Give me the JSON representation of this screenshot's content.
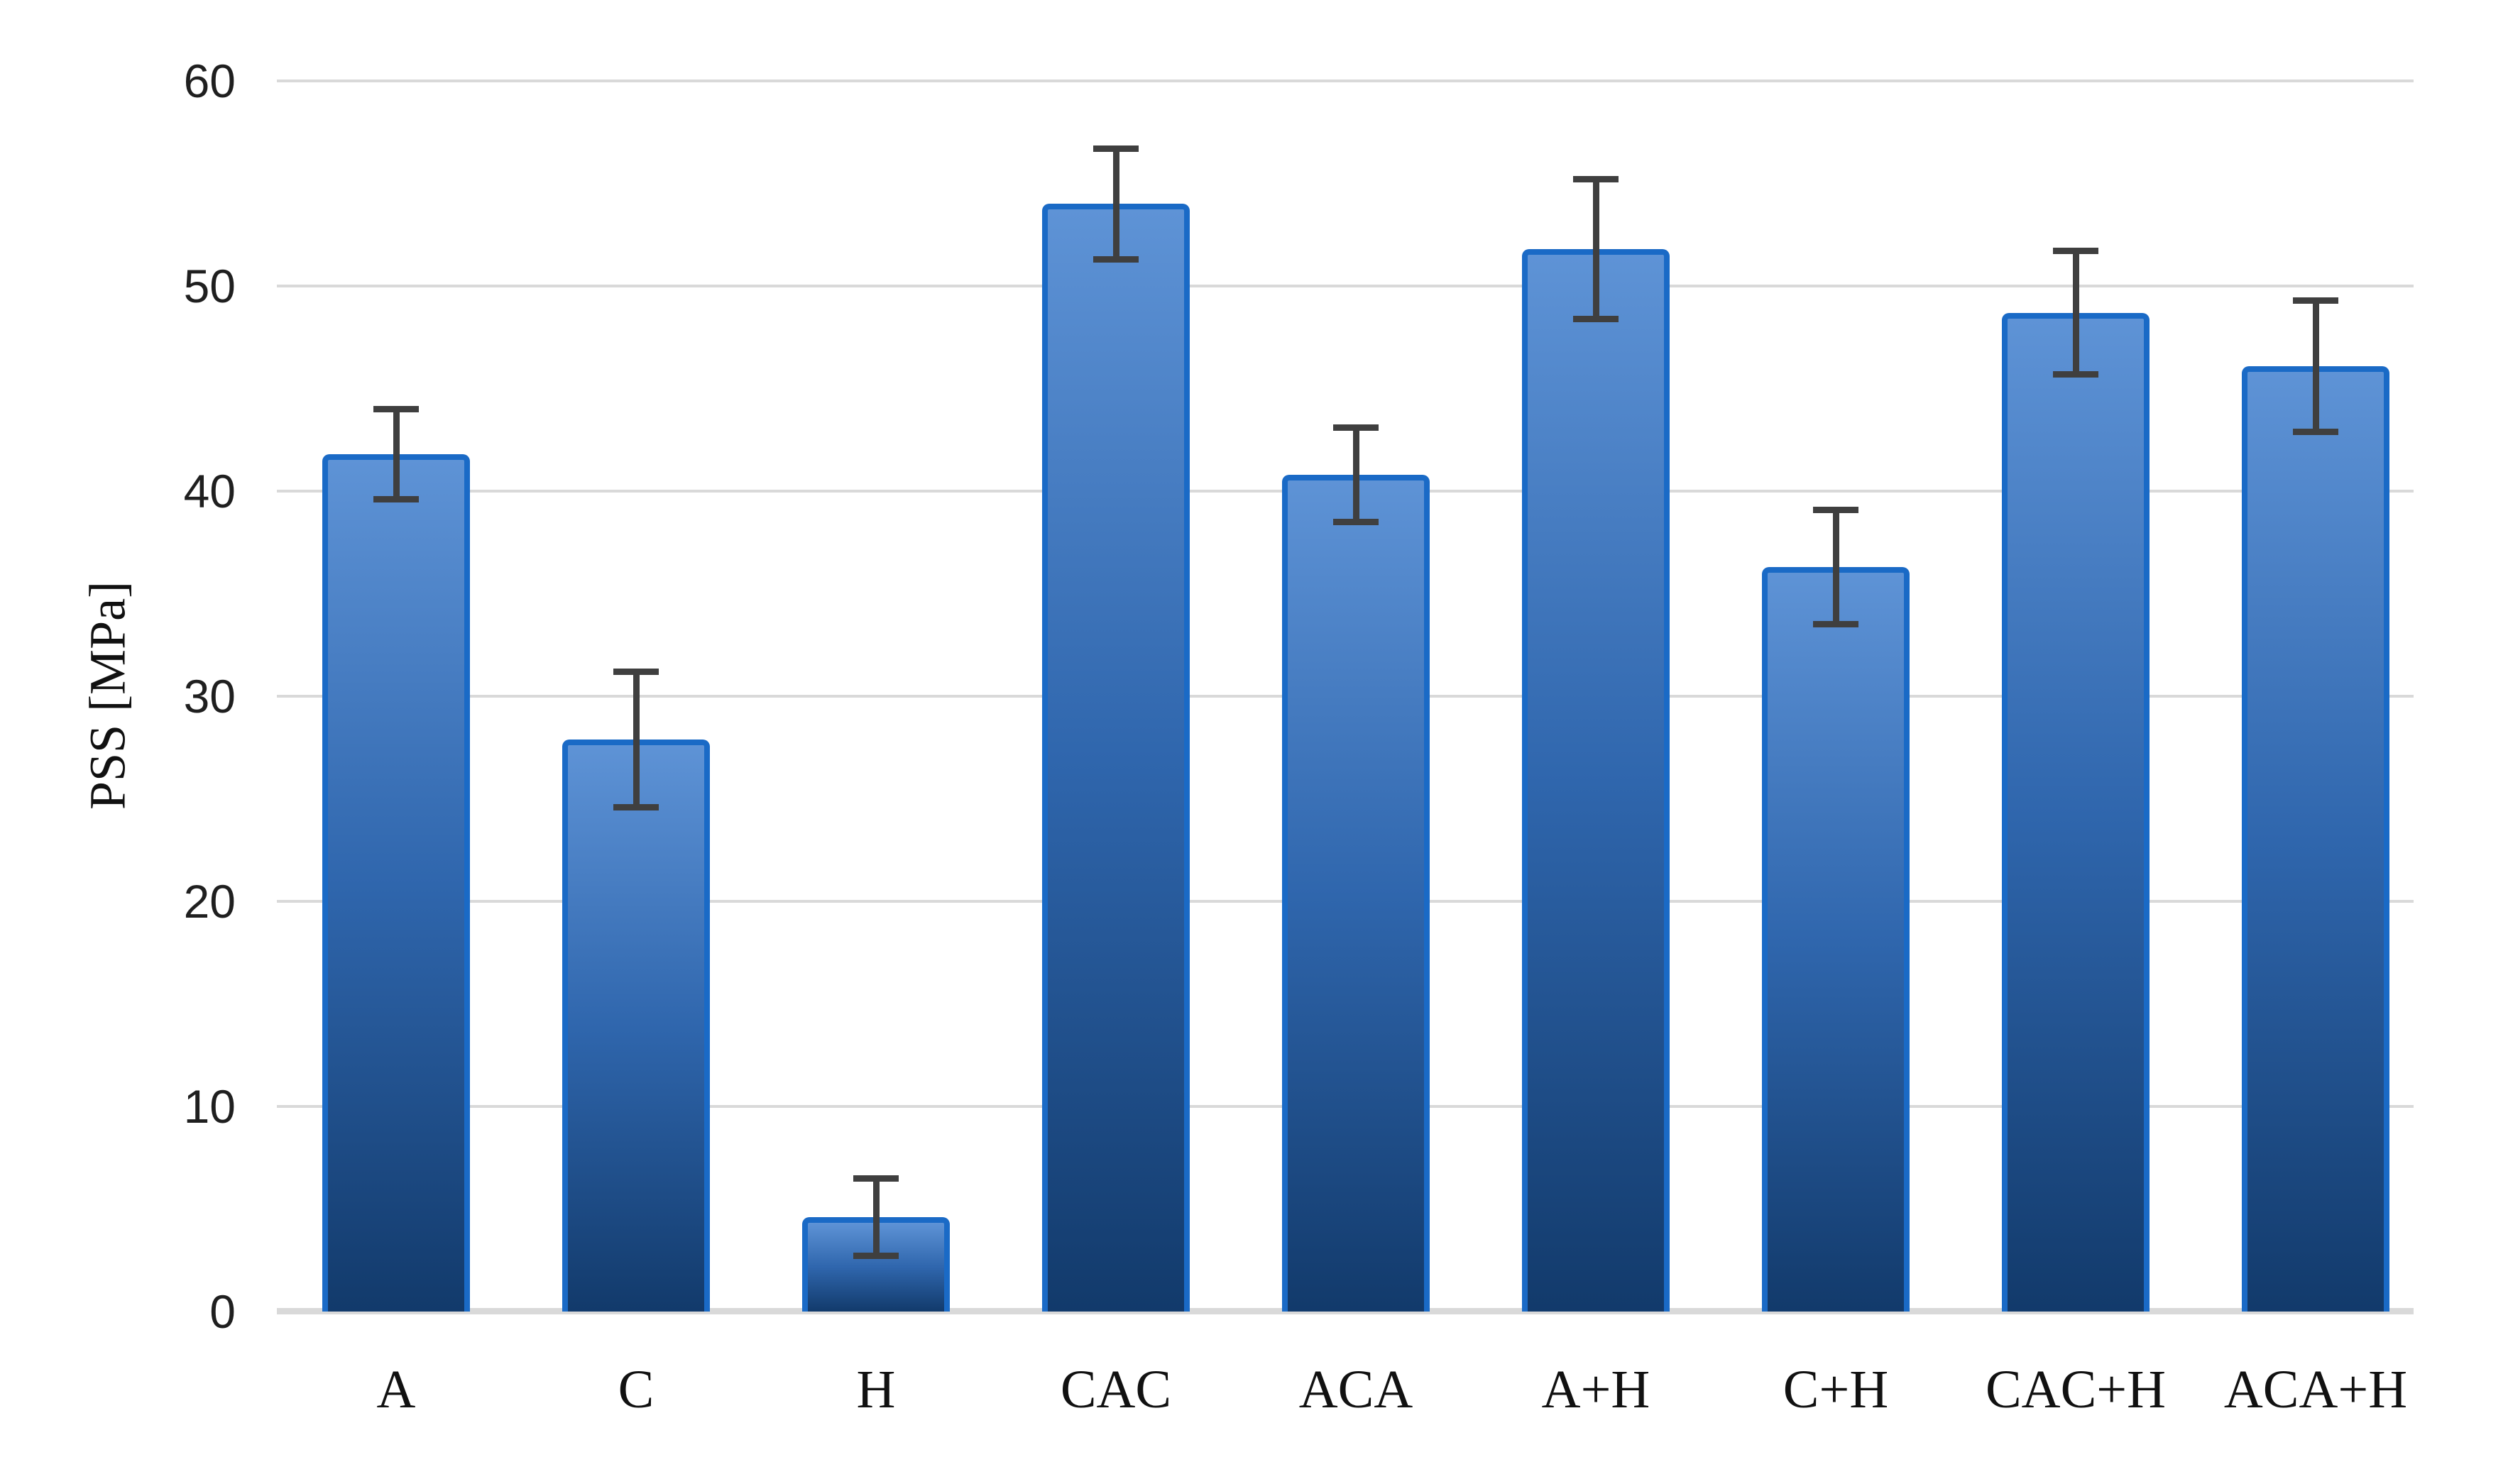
{
  "chart_data": {
    "type": "bar",
    "title": "",
    "xlabel": "",
    "ylabel": "PSS [MPa]",
    "categories": [
      "A",
      "C",
      "H",
      "CAC",
      "ACA",
      "A+H",
      "C+H",
      "CAC+H",
      "ACA+H"
    ],
    "values": [
      41.8,
      27.9,
      4.6,
      54.0,
      40.8,
      51.8,
      36.3,
      48.7,
      46.1
    ],
    "errors": [
      2.2,
      3.3,
      1.9,
      2.7,
      2.3,
      3.4,
      2.8,
      3.0,
      3.2
    ],
    "ylim": [
      0,
      60
    ],
    "yticks": [
      0,
      10,
      20,
      30,
      40,
      50,
      60
    ],
    "ytick_labels": [
      "0",
      "10",
      "20",
      "30",
      "40",
      "50",
      "60"
    ],
    "grid": true,
    "legend_position": "none",
    "colors": {
      "bar_fill_top": "#5E93D6",
      "bar_fill_mid": "#2F66AD",
      "bar_fill_bottom": "#123A6B",
      "bar_border": "#1A6AC6",
      "error_bar": "#3F3F3F",
      "gridline": "#D9D9D9",
      "axis_line": "#D9D9D9",
      "text": "#1A1A1A"
    }
  }
}
